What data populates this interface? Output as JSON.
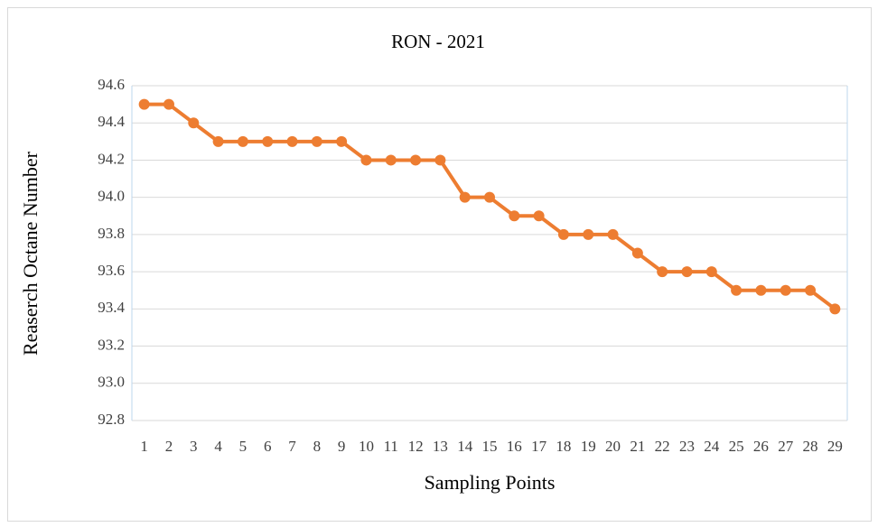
{
  "chart_data": {
    "type": "line",
    "title": "RON - 2021",
    "x_label": "Sampling Points",
    "y_label": "Reaserch Octane Number",
    "categories": [
      "1",
      "2",
      "3",
      "4",
      "5",
      "6",
      "7",
      "8",
      "9",
      "10",
      "11",
      "12",
      "13",
      "14",
      "15",
      "16",
      "17",
      "18",
      "19",
      "20",
      "21",
      "22",
      "23",
      "24",
      "25",
      "26",
      "27",
      "28",
      "29"
    ],
    "values": [
      94.5,
      94.5,
      94.4,
      94.3,
      94.3,
      94.3,
      94.3,
      94.3,
      94.3,
      94.2,
      94.2,
      94.2,
      94.2,
      94.0,
      94.0,
      93.9,
      93.9,
      93.8,
      93.8,
      93.8,
      93.7,
      93.6,
      93.6,
      93.6,
      93.5,
      93.5,
      93.5,
      93.5,
      93.4
    ],
    "color": "#ed7d31",
    "ylim": [
      92.8,
      94.6
    ],
    "yticks": [
      92.8,
      {
        "value": 93,
        "label": "93.0"
      },
      93.2,
      93.4,
      93.6,
      93.8,
      {
        "value": 94,
        "label": "94.0"
      },
      94.2,
      94.4,
      94.6
    ],
    "grid": true
  }
}
